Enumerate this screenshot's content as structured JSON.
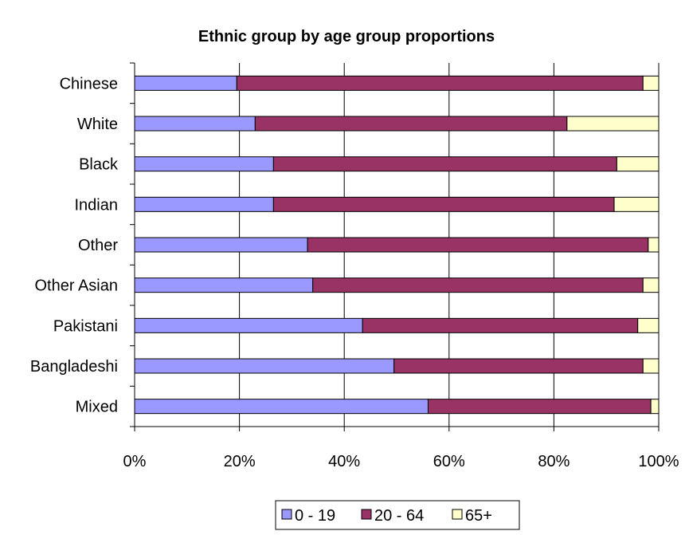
{
  "chart_data": {
    "type": "bar",
    "orientation": "horizontal",
    "stacked": true,
    "title": "Ethnic group by age group proportions",
    "xlabel": "",
    "ylabel": "",
    "xlim": [
      0,
      100
    ],
    "x_ticks": [
      "0%",
      "20%",
      "40%",
      "60%",
      "80%",
      "100%"
    ],
    "grid": "vertical",
    "legend_position": "bottom",
    "categories": [
      "Chinese",
      "White",
      "Black",
      "Indian",
      "Other",
      "Other Asian",
      "Pakistani",
      "Bangladeshi",
      "Mixed"
    ],
    "series": [
      {
        "name": "0 - 19",
        "color": "#9999ff",
        "values": [
          19.5,
          23,
          26.5,
          26.5,
          33,
          34,
          43.5,
          49.5,
          56
        ]
      },
      {
        "name": "20 - 64",
        "color": "#993366",
        "values": [
          77.5,
          59.5,
          65.5,
          65,
          65,
          63,
          52.5,
          47.5,
          42.5
        ]
      },
      {
        "name": "65+",
        "color": "#ffffcc",
        "values": [
          3,
          17.5,
          8,
          8.5,
          2,
          3,
          4,
          3,
          1.5
        ]
      }
    ]
  }
}
